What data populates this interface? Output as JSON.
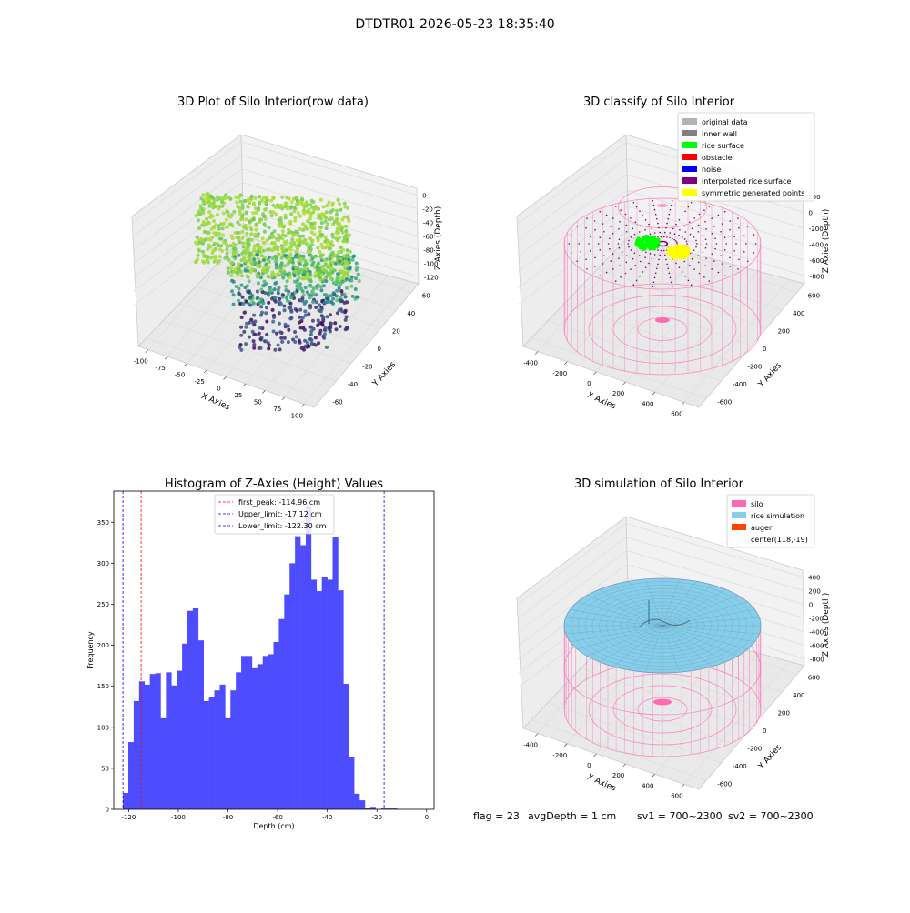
{
  "suptitle": "DTDTR01 2026-05-23 18:35:40",
  "chart_data": [
    {
      "type": "scatter",
      "projection": "3d",
      "title": "3D Plot of Silo Interior(row data)",
      "xlabel": "X Axies",
      "ylabel": "Y Axies",
      "zlabel": "Z Axies (Depth)",
      "xticks": [
        "-100",
        "-75",
        "-50",
        "-25",
        "0",
        "25",
        "50",
        "75",
        "100"
      ],
      "yticks": [
        "-60",
        "-40",
        "-20",
        "0",
        "20",
        "40",
        "60"
      ],
      "zticks": [
        "0",
        "-20",
        "-40",
        "-60",
        "-80",
        "-100",
        "-120"
      ],
      "xlim": [
        -100,
        100
      ],
      "ylim": [
        -60,
        60
      ],
      "zlim": [
        -130,
        0
      ],
      "colormap": "viridis",
      "colormap_stops": [
        "#440154",
        "#3b528b",
        "#21918c",
        "#5ec962",
        "#9bd93c",
        "#b5de2b"
      ]
    },
    {
      "type": "scatter",
      "projection": "3d",
      "title": "3D classify of Silo Interior",
      "xlabel": "X Axies",
      "ylabel": "Y Axies",
      "zlabel": "Z Axies (Depth)",
      "xticks": [
        "-400",
        "-200",
        "0",
        "200",
        "400",
        "600"
      ],
      "yticks": [
        "-600",
        "-400",
        "-200",
        "0",
        "200",
        "400",
        "600"
      ],
      "zticks": [
        "200",
        "0",
        "-200",
        "-400",
        "-600",
        "-800"
      ],
      "legend_position": "top-right",
      "legend": [
        {
          "label": "original data",
          "color": "#b3b3b3"
        },
        {
          "label": "inner wall",
          "color": "#808080"
        },
        {
          "label": "rice surface",
          "color": "#00ff00"
        },
        {
          "label": "obstacle",
          "color": "#ff0000"
        },
        {
          "label": "noise",
          "color": "#0000ff"
        },
        {
          "label": "interpolated rice surface",
          "color": "#800080"
        },
        {
          "label": "symmetric generated points",
          "color": "#ffff00"
        }
      ]
    },
    {
      "type": "bar",
      "title": "Histogram of Z-Axies (Height) Values",
      "xlabel": "Depth (cm)",
      "ylabel": "Frequency",
      "xlim": [
        -126,
        3
      ],
      "ylim": [
        0,
        388
      ],
      "xticks": [
        -120,
        -100,
        -80,
        -60,
        -40,
        -20,
        0
      ],
      "yticks": [
        0,
        50,
        100,
        150,
        200,
        250,
        300,
        350
      ],
      "bar_color": "#4d4dff",
      "bin_start": -122.3,
      "bin_width": 2.165,
      "values": [
        20,
        82,
        132,
        156,
        152,
        165,
        166,
        111,
        167,
        151,
        169,
        202,
        242,
        245,
        206,
        132,
        137,
        145,
        152,
        111,
        145,
        167,
        187,
        187,
        172,
        177,
        187,
        189,
        204,
        232,
        262,
        300,
        333,
        322,
        370,
        280,
        266,
        283,
        280,
        332,
        267,
        153,
        64,
        19,
        11,
        2,
        3,
        0,
        1,
        1,
        1
      ],
      "legend_position": "upper-center",
      "vlines": [
        {
          "label": "first_peak: -114.96 cm",
          "x": -114.96,
          "color": "#ff0000"
        },
        {
          "label": "Upper_limit: -17.12 cm",
          "x": -17.12,
          "color": "#0000ff"
        },
        {
          "label": "Lower_limit: -122.30 cm",
          "x": -122.3,
          "color": "#0000ff"
        }
      ]
    },
    {
      "type": "surface",
      "projection": "3d",
      "title": "3D simulation of Silo Interior",
      "xlabel": "X Axies",
      "ylabel": "Y Axies",
      "zlabel": "Z Axies (Depth)",
      "xticks": [
        "-400",
        "-200",
        "0",
        "200",
        "400",
        "600"
      ],
      "yticks": [
        "-600",
        "-400",
        "-200",
        "0",
        "200",
        "400",
        "600"
      ],
      "zticks": [
        "400",
        "200",
        "0",
        "-200",
        "-400",
        "-600",
        "-800"
      ],
      "legend_position": "top-right",
      "legend": [
        {
          "label": "silo",
          "color": "#ff69b4"
        },
        {
          "label": "rice simulation",
          "color": "#87ceeb"
        },
        {
          "label": "auger",
          "color": "#ff4500"
        },
        {
          "label": "center(118,-19)",
          "color": ""
        }
      ]
    }
  ],
  "footer": {
    "flag": "flag = 23",
    "avg_depth": "avgDepth = 1 cm",
    "sv1": "sv1 = 700~2300",
    "sv2": "sv2 = 700~2300"
  }
}
